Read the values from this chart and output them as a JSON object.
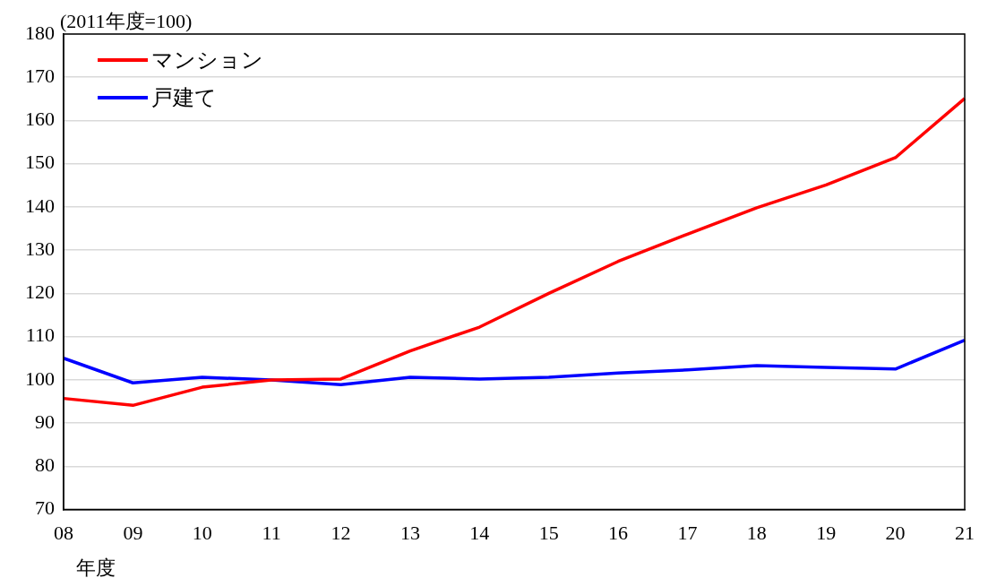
{
  "chart_data": {
    "type": "line",
    "ylabel": "(2011年度=100)",
    "xlabel": "年度",
    "categories": [
      "08",
      "09",
      "10",
      "11",
      "12",
      "13",
      "14",
      "15",
      "16",
      "17",
      "18",
      "19",
      "20",
      "21"
    ],
    "series": [
      {
        "name": "マンション",
        "color": "#ff0000",
        "values": [
          95.7,
          94.1,
          98.3,
          100,
          100.2,
          106.7,
          112.2,
          120,
          127.4,
          133.7,
          139.8,
          145.1,
          151.4,
          165.1
        ]
      },
      {
        "name": "戸建て",
        "color": "#0000ff",
        "values": [
          105.0,
          99.3,
          100.6,
          100,
          98.9,
          100.6,
          100.2,
          100.6,
          101.6,
          102.3,
          103.3,
          102.9,
          102.5,
          109.2
        ]
      }
    ],
    "ylim": [
      70,
      180
    ],
    "yticks": [
      70,
      80,
      90,
      100,
      110,
      120,
      130,
      140,
      150,
      160,
      170,
      180
    ],
    "grid": "y",
    "legend": "top left",
    "marker": "none",
    "line_style": "solid"
  }
}
